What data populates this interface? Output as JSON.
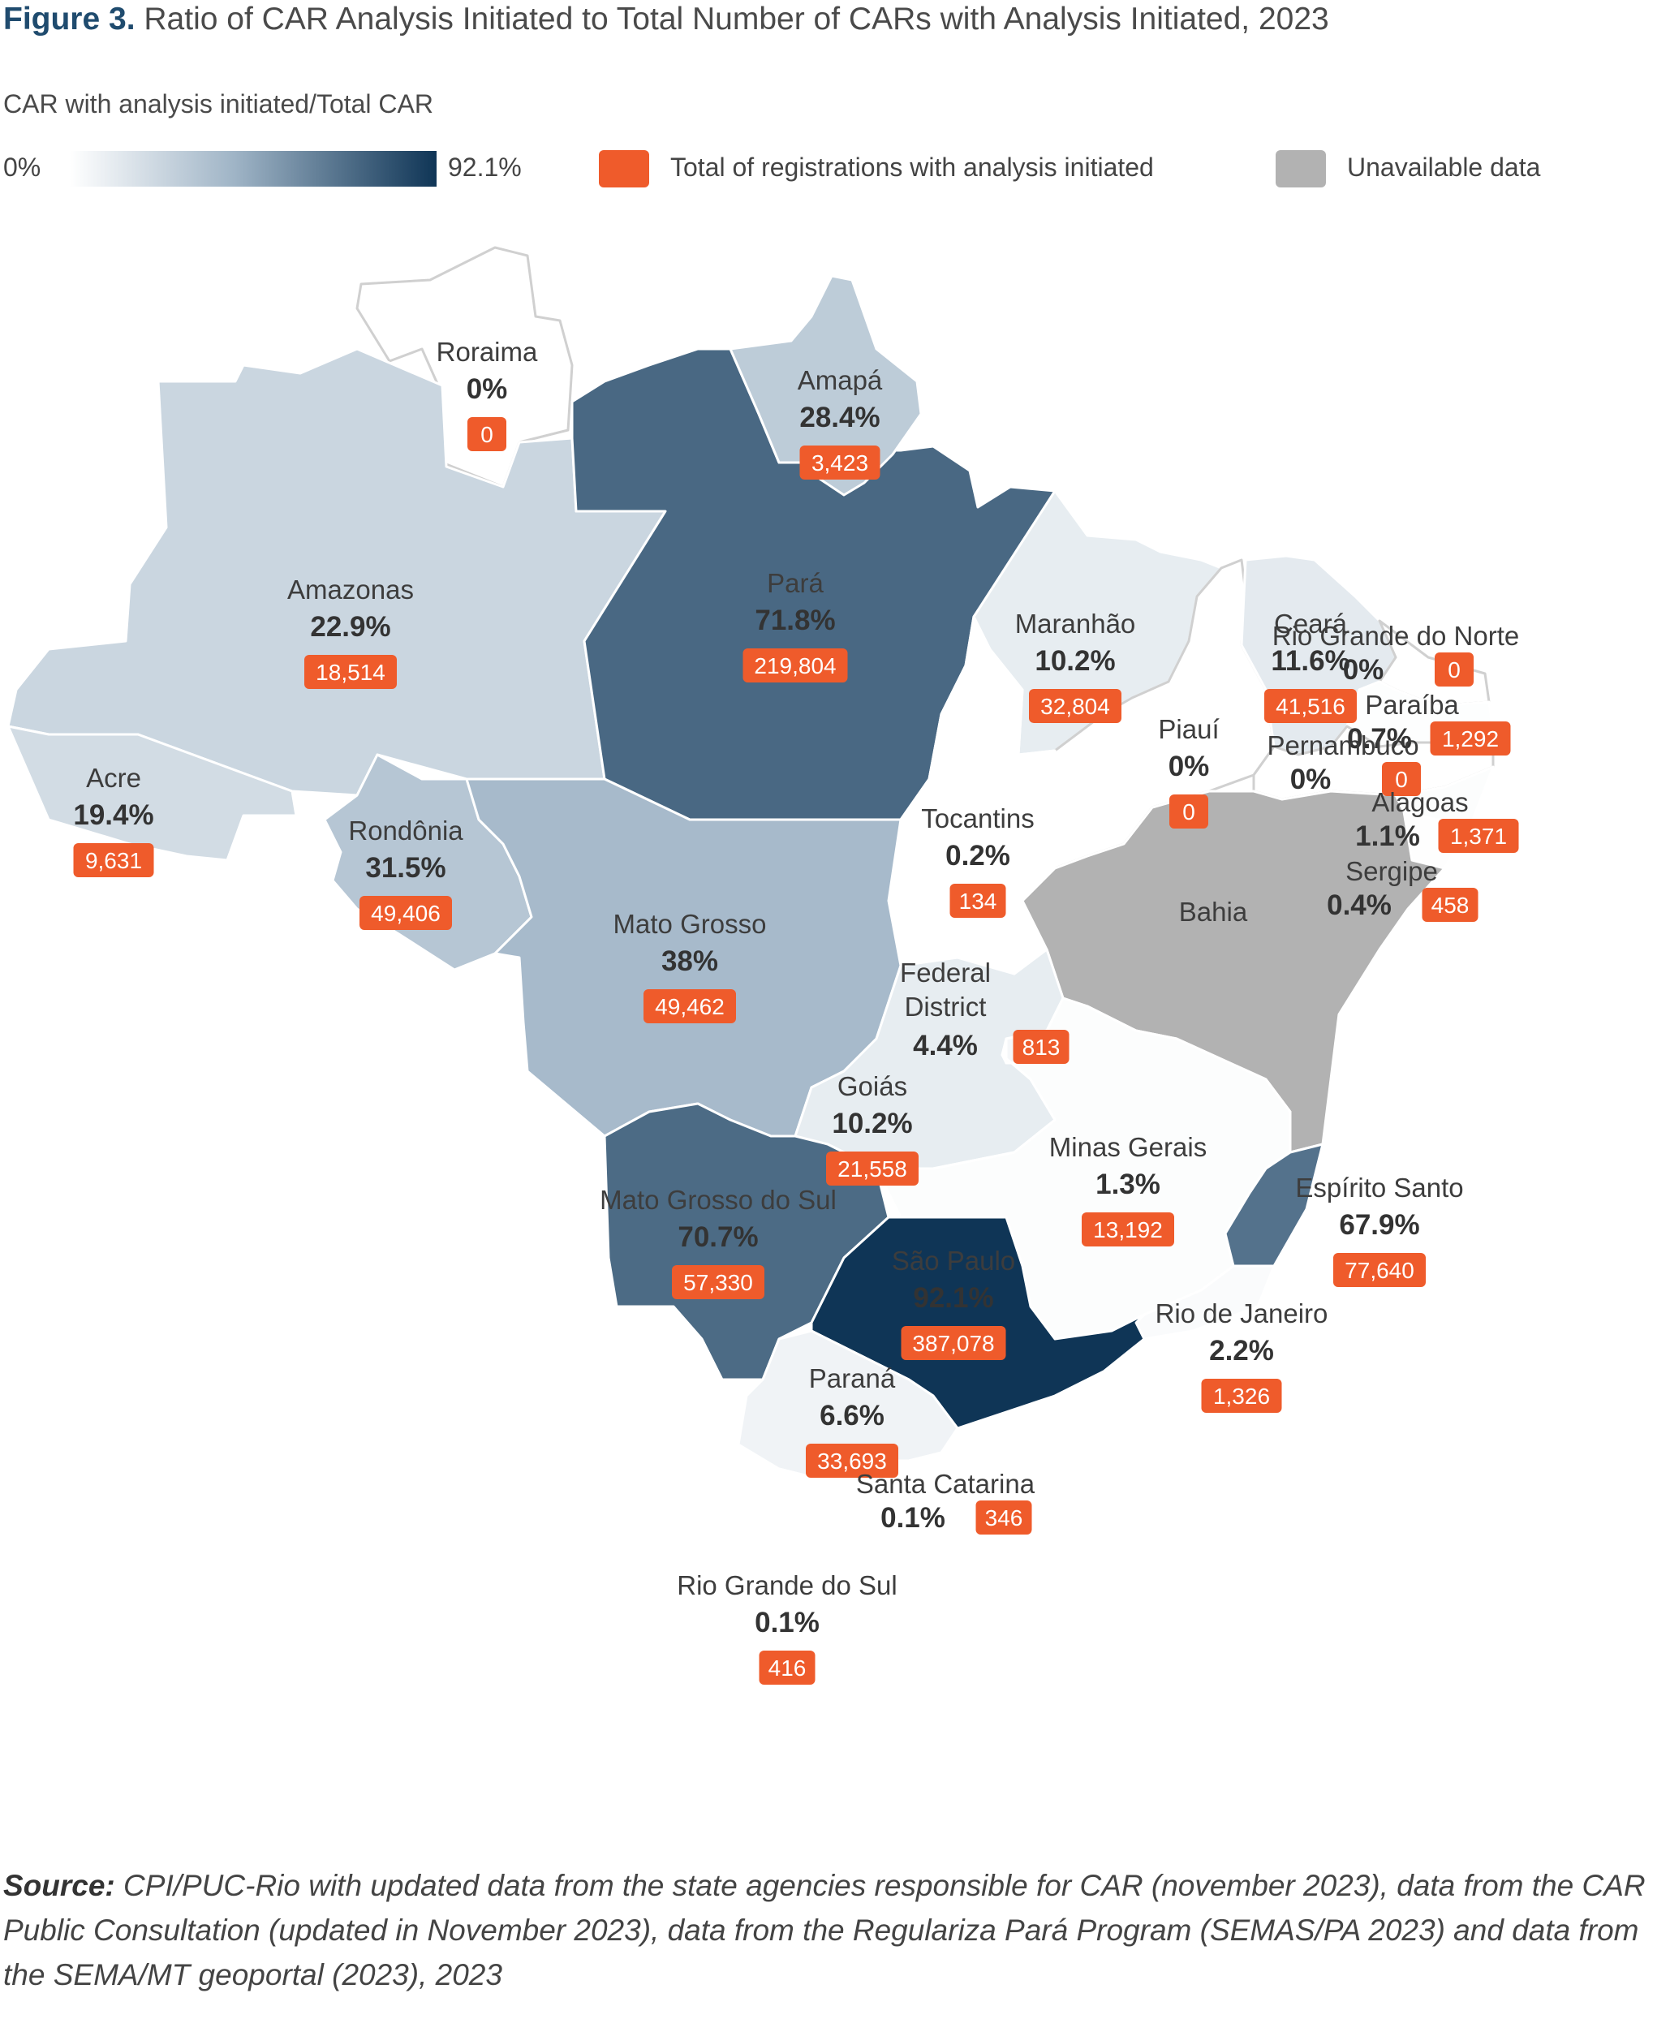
{
  "title": {
    "prefix": "Figure 3.",
    "text": "Ratio of CAR Analysis Initiated to Total Number of CARs with Analysis Initiated, 2023"
  },
  "legend": {
    "scale_label": "CAR with analysis initiated/Total CAR",
    "min_label": "0%",
    "max_label": "92.1%",
    "total_label": "Total of registrations with analysis initiated",
    "unavailable_label": "Unavailable data",
    "colors": {
      "scale_low": "#ffffff",
      "scale_high": "#0f3556",
      "total": "#ef5b2b",
      "unavailable": "#b2b2b2"
    }
  },
  "states": [
    {
      "id": "roraima",
      "name": "Roraima",
      "pct": "0%",
      "value": 0,
      "count": "0"
    },
    {
      "id": "amapa",
      "name": "Amapá",
      "pct": "28.4%",
      "value": 28.4,
      "count": "3,423"
    },
    {
      "id": "amazonas",
      "name": "Amazonas",
      "pct": "22.9%",
      "value": 22.9,
      "count": "18,514"
    },
    {
      "id": "para",
      "name": "Pará",
      "pct": "71.8%",
      "value": 71.8,
      "count": "219,804"
    },
    {
      "id": "maranhao",
      "name": "Maranhão",
      "pct": "10.2%",
      "value": 10.2,
      "count": "32,804"
    },
    {
      "id": "ceara",
      "name": "Ceará",
      "pct": "11.6%",
      "value": 11.6,
      "count": "41,516"
    },
    {
      "id": "rio-grande-do-norte",
      "name": "Rio Grande do Norte",
      "pct": "0%",
      "value": 0,
      "count": "0"
    },
    {
      "id": "paraiba",
      "name": "Paraíba",
      "pct": "0.7%",
      "value": 0.7,
      "count": "1,292"
    },
    {
      "id": "piaui",
      "name": "Piauí",
      "pct": "0%",
      "value": 0,
      "count": "0"
    },
    {
      "id": "pernambuco",
      "name": "Pernambuco",
      "pct": "0%",
      "value": 0,
      "count": "0"
    },
    {
      "id": "alagoas",
      "name": "Alagoas",
      "pct": "1.1%",
      "value": 1.1,
      "count": "1,371"
    },
    {
      "id": "sergipe",
      "name": "Sergipe",
      "pct": "0.4%",
      "value": 0.4,
      "count": "458"
    },
    {
      "id": "acre",
      "name": "Acre",
      "pct": "19.4%",
      "value": 19.4,
      "count": "9,631"
    },
    {
      "id": "rondonia",
      "name": "Rondônia",
      "pct": "31.5%",
      "value": 31.5,
      "count": "49,406"
    },
    {
      "id": "tocantins",
      "name": "Tocantins",
      "pct": "0.2%",
      "value": 0.2,
      "count": "134"
    },
    {
      "id": "bahia",
      "name": "Bahia",
      "pct": "",
      "value": null,
      "count": ""
    },
    {
      "id": "mato-grosso",
      "name": "Mato Grosso",
      "pct": "38%",
      "value": 38,
      "count": "49,462"
    },
    {
      "id": "federal-district",
      "name": "Federal District",
      "pct": "4.4%",
      "value": 4.4,
      "count": "813"
    },
    {
      "id": "goias",
      "name": "Goiás",
      "pct": "10.2%",
      "value": 10.2,
      "count": "21,558"
    },
    {
      "id": "minas-gerais",
      "name": "Minas Gerais",
      "pct": "1.3%",
      "value": 1.3,
      "count": "13,192"
    },
    {
      "id": "espirito-santo",
      "name": "Espírito Santo",
      "pct": "67.9%",
      "value": 67.9,
      "count": "77,640"
    },
    {
      "id": "mato-grosso-do-sul",
      "name": "Mato Grosso do Sul",
      "pct": "70.7%",
      "value": 70.7,
      "count": "57,330"
    },
    {
      "id": "sao-paulo",
      "name": "São Paulo",
      "pct": "92.1%",
      "value": 92.1,
      "count": "387,078"
    },
    {
      "id": "rio-de-janeiro",
      "name": "Rio de Janeiro",
      "pct": "2.2%",
      "value": 2.2,
      "count": "1,326"
    },
    {
      "id": "parana",
      "name": "Paraná",
      "pct": "6.6%",
      "value": 6.6,
      "count": "33,693"
    },
    {
      "id": "santa-catarina",
      "name": "Santa Catarina",
      "pct": "0.1%",
      "value": 0.1,
      "count": "346"
    },
    {
      "id": "rio-grande-do-sul",
      "name": "Rio Grande do Sul",
      "pct": "0.1%",
      "value": 0.1,
      "count": "416"
    }
  ],
  "source": {
    "label": "Source:",
    "text": "CPI/PUC-Rio with updated data from the state agencies responsible for CAR (november 2023), data from the CAR Public Consultation (updated in November 2023), data from the Regulariza Pará Program (SEMAS/PA 2023) and data from the SEMA/MT geoportal (2023), 2023"
  }
}
